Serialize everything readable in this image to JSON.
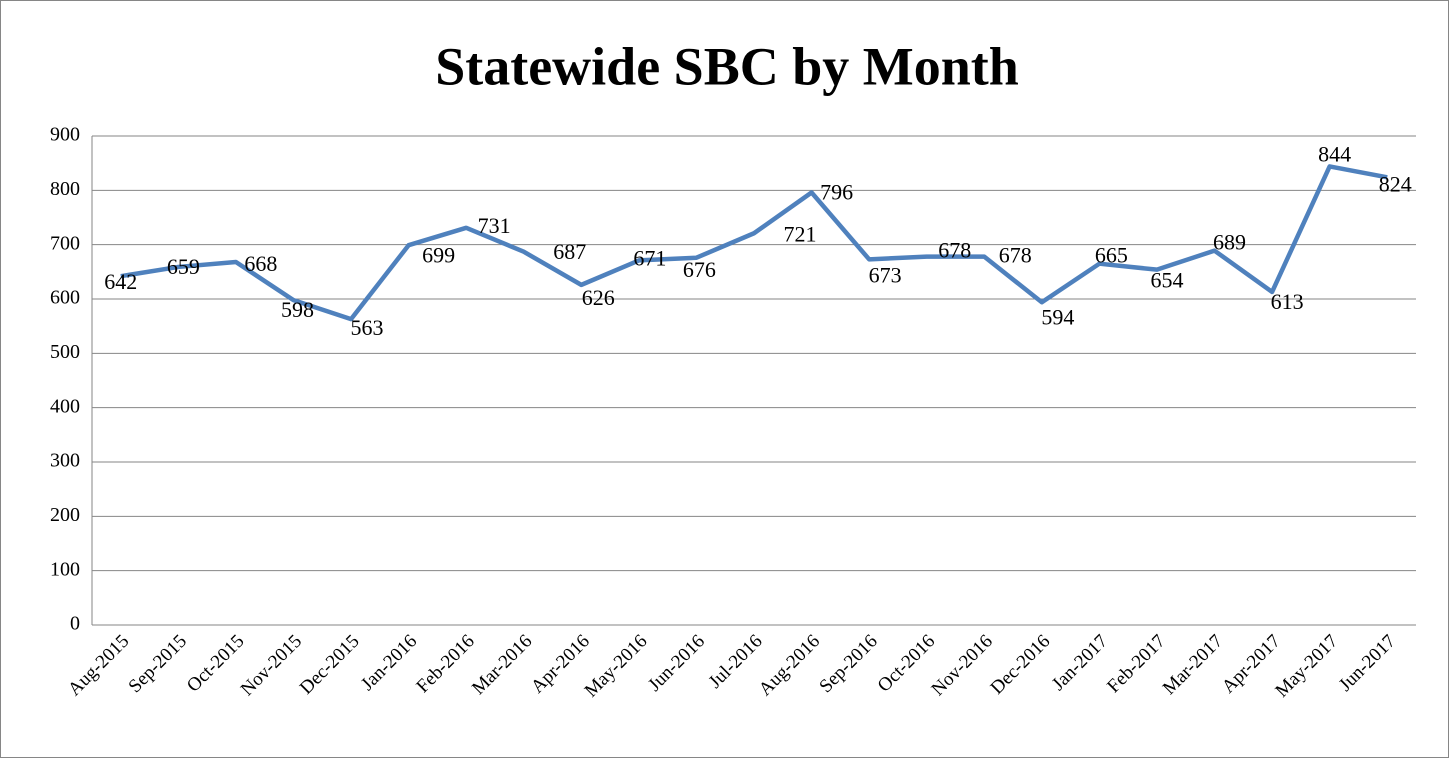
{
  "chart_data": {
    "type": "line",
    "title": "Statewide SBC by Month",
    "categories": [
      "Aug-2015",
      "Sep-2015",
      "Oct-2015",
      "Nov-2015",
      "Dec-2015",
      "Jan-2016",
      "Feb-2016",
      "Mar-2016",
      "Apr-2016",
      "May-2016",
      "Jun-2016",
      "Jul-2016",
      "Aug-2016",
      "Sep-2016",
      "Oct-2016",
      "Nov-2016",
      "Dec-2016",
      "Jan-2017",
      "Feb-2017",
      "Mar-2017",
      "Apr-2017",
      "May-2017",
      "Jun-2017"
    ],
    "values": [
      642,
      659,
      668,
      598,
      563,
      699,
      731,
      687,
      626,
      671,
      676,
      721,
      796,
      673,
      678,
      678,
      594,
      665,
      654,
      689,
      613,
      844,
      824
    ],
    "color": "#4f81bd",
    "ylim": [
      0,
      900
    ],
    "yticks": [
      0,
      100,
      200,
      300,
      400,
      500,
      600,
      700,
      800,
      900
    ],
    "grid": true
  }
}
